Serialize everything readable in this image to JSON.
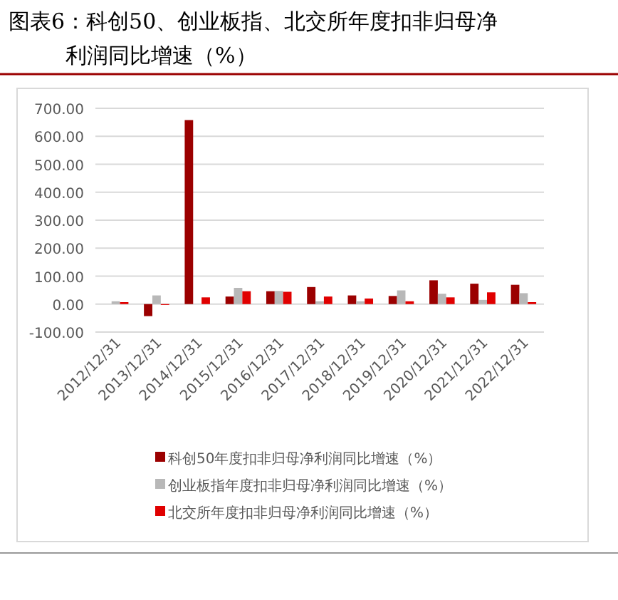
{
  "chart_data": {
    "type": "bar",
    "title": "图表6：科创50、创业板指、北交所年度扣非归母净利润同比增速（%）",
    "categories": [
      "2012/12/31",
      "2013/12/31",
      "2014/12/31",
      "2015/12/31",
      "2016/12/31",
      "2017/12/31",
      "2018/12/31",
      "2019/12/31",
      "2020/12/31",
      "2021/12/31",
      "2022/12/31"
    ],
    "series": [
      {
        "name": "科创50年度扣非归母净利润同比增速（%）",
        "color": "#9b0000",
        "values": [
          null,
          -43,
          658,
          27,
          46,
          61,
          31,
          29,
          85,
          73,
          69
        ]
      },
      {
        "name": "创业板指年度扣非归母净利润同比增速（%）",
        "color": "#b8b8b8",
        "values": [
          10,
          31,
          0,
          58,
          47,
          10,
          10,
          49,
          37,
          15,
          39
        ]
      },
      {
        "name": "北交所年度扣非归母净利润同比增速（%）",
        "color": "#e00000",
        "values": [
          7,
          -3,
          24,
          46,
          44,
          27,
          20,
          10,
          24,
          42,
          7
        ]
      }
    ],
    "ylim": [
      -100,
      700
    ],
    "yticks": [
      {
        "value": -100,
        "label": "-100.00"
      },
      {
        "value": 0,
        "label": "0.00"
      },
      {
        "value": 100,
        "label": "100.00"
      },
      {
        "value": 200,
        "label": "200.00"
      },
      {
        "value": 300,
        "label": "300.00"
      },
      {
        "value": 400,
        "label": "400.00"
      },
      {
        "value": 500,
        "label": "500.00"
      },
      {
        "value": 600,
        "label": "600.00"
      },
      {
        "value": 700,
        "label": "700.00"
      }
    ],
    "grid": "y",
    "legend": "bottom"
  }
}
